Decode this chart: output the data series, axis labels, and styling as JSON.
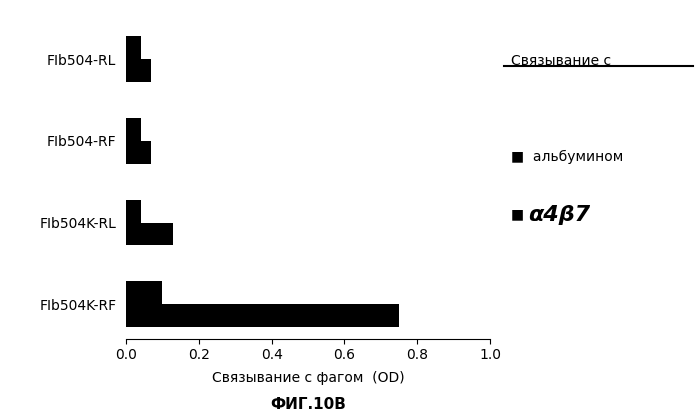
{
  "categories": [
    "FIb504-RL",
    "FIb504-RF",
    "FIb504K-RL",
    "FIb504K-RF"
  ],
  "albumin_values": [
    0.04,
    0.04,
    0.04,
    0.1
  ],
  "alpha4b7_values": [
    0.07,
    0.07,
    0.13,
    0.75
  ],
  "bar_color": "#000000",
  "xlim": [
    0,
    1.0
  ],
  "xticks": [
    0,
    0.2,
    0.4,
    0.6,
    0.8,
    1.0
  ],
  "xlabel": "Связывание с фагом  (OD)",
  "fig_label": "ФИГ.10В",
  "legend_title": "Связывание с",
  "legend_albumin": "альбумином",
  "legend_alpha4b7": "α4β7",
  "bar_height": 0.28,
  "figsize": [
    7.0,
    4.13
  ],
  "dpi": 100
}
